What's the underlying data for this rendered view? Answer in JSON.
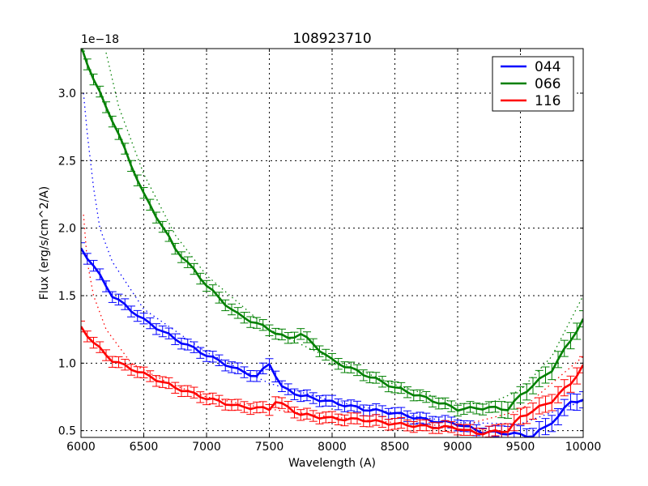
{
  "chart_data": {
    "type": "line",
    "title": "108923710",
    "xlabel": "Wavelength (A)",
    "ylabel": "Flux (erg/s/cm^2/A)",
    "y_offset_label": "1e−18",
    "xlim": [
      6000,
      10000
    ],
    "ylim": [
      0.45,
      3.33
    ],
    "xticks": [
      6000,
      6500,
      7000,
      7500,
      8000,
      8500,
      9000,
      9500,
      10000
    ],
    "xtick_labels": [
      "6000",
      "6500",
      "7000",
      "7500",
      "8000",
      "8500",
      "9000",
      "9500",
      "10000"
    ],
    "yticks": [
      0.5,
      1.0,
      1.5,
      2.0,
      2.5,
      3.0
    ],
    "ytick_labels": [
      "0.5",
      "1.0",
      "1.5",
      "2.0",
      "2.5",
      "3.0"
    ],
    "grid": true,
    "legend_position": "upper right",
    "series": [
      {
        "name": "044",
        "color": "#0000ff",
        "style": "solid-with-errorbars",
        "x": [
          6000,
          6100,
          6250,
          6500,
          6750,
          7000,
          7250,
          7400,
          7500,
          7600,
          7750,
          8000,
          8250,
          8500,
          8750,
          9000,
          9200,
          9400,
          9600,
          9800,
          9900,
          10000
        ],
        "values": [
          1.85,
          1.72,
          1.5,
          1.32,
          1.18,
          1.06,
          0.95,
          0.9,
          1.0,
          0.82,
          0.76,
          0.71,
          0.66,
          0.63,
          0.58,
          0.55,
          0.49,
          0.48,
          0.46,
          0.6,
          0.72,
          0.72
        ]
      },
      {
        "name": "066",
        "color": "#008000",
        "style": "solid-with-errorbars",
        "x": [
          6000,
          6100,
          6250,
          6500,
          6750,
          7000,
          7100,
          7250,
          7500,
          7650,
          7750,
          8000,
          8250,
          8500,
          8750,
          9000,
          9250,
          9400,
          9500,
          9750,
          10000
        ],
        "values": [
          3.35,
          3.1,
          2.8,
          2.25,
          1.85,
          1.58,
          1.48,
          1.36,
          1.25,
          1.18,
          1.22,
          1.02,
          0.92,
          0.82,
          0.74,
          0.66,
          0.67,
          0.66,
          0.76,
          0.95,
          1.32
        ]
      },
      {
        "name": "116",
        "color": "#ff0000",
        "style": "solid-with-errorbars",
        "x": [
          6000,
          6100,
          6250,
          6500,
          6750,
          7000,
          7250,
          7500,
          7550,
          7750,
          8000,
          8250,
          8500,
          8750,
          9000,
          9150,
          9400,
          9500,
          9750,
          9900,
          10000
        ],
        "values": [
          1.27,
          1.15,
          1.02,
          0.92,
          0.82,
          0.74,
          0.68,
          0.66,
          0.72,
          0.62,
          0.59,
          0.58,
          0.55,
          0.53,
          0.52,
          0.48,
          0.5,
          0.6,
          0.72,
          0.85,
          0.98
        ]
      }
    ],
    "model_curves": [
      {
        "name": "044-model",
        "color": "#0000ff",
        "style": "dotted",
        "x": [
          6020,
          6050,
          6100,
          6150,
          6250,
          6500,
          7000,
          7500,
          8000,
          8500,
          9000,
          9500,
          10000
        ],
        "values": [
          3.0,
          2.7,
          2.3,
          2.0,
          1.75,
          1.4,
          1.08,
          0.85,
          0.72,
          0.63,
          0.56,
          0.55,
          0.72
        ]
      },
      {
        "name": "066-model",
        "color": "#008000",
        "style": "dotted",
        "x": [
          6200,
          6300,
          6500,
          6750,
          7000,
          7500,
          8000,
          8500,
          9000,
          9250,
          9500,
          9750,
          10000
        ],
        "values": [
          3.3,
          2.9,
          2.4,
          1.95,
          1.65,
          1.25,
          1.03,
          0.84,
          0.7,
          0.7,
          0.8,
          1.05,
          1.5
        ]
      },
      {
        "name": "116-model",
        "color": "#ff0000",
        "style": "dotted",
        "x": [
          6020,
          6050,
          6100,
          6200,
          6400,
          6700,
          7000,
          7500,
          8000,
          8500,
          9000,
          9500,
          10000
        ],
        "values": [
          2.1,
          1.75,
          1.5,
          1.25,
          1.0,
          0.85,
          0.75,
          0.66,
          0.6,
          0.56,
          0.53,
          0.65,
          1.05
        ]
      }
    ]
  }
}
